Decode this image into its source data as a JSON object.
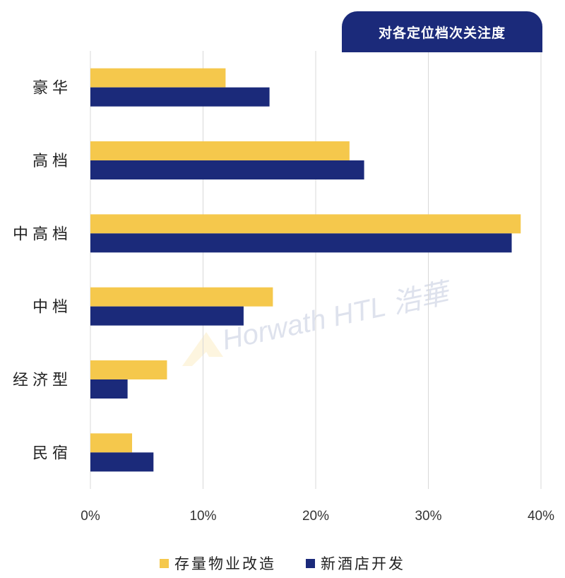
{
  "colors": {
    "existing": "#f5c84c",
    "new": "#1b2a7a",
    "grid": "#d8d8d8",
    "text": "#333333"
  },
  "watermark": "Horwath HTL 浩華",
  "chart_data": {
    "type": "bar",
    "orientation": "horizontal",
    "title": "对各定位档次关注度",
    "categories": [
      "豪华",
      "高档",
      "中高档",
      "中档",
      "经济型",
      "民宿"
    ],
    "series": [
      {
        "name": "存量物业改造",
        "color": "#f5c84c",
        "values": [
          12.0,
          23.0,
          38.2,
          16.2,
          6.8,
          3.7
        ]
      },
      {
        "name": "新酒店开发",
        "color": "#1b2a7a",
        "values": [
          15.9,
          24.3,
          37.4,
          13.6,
          3.3,
          5.6
        ]
      }
    ],
    "xlim": [
      0,
      40
    ],
    "x_ticks": [
      "0%",
      "10%",
      "20%",
      "30%",
      "40%"
    ],
    "grid": "vertical",
    "legend_position": "bottom-center",
    "xlabel": "",
    "ylabel": ""
  }
}
